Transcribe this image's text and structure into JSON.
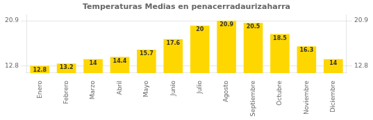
{
  "chart_data": {
    "type": "bar",
    "title": "Temperaturas Medias en penacerradaurizaharra",
    "categories": [
      "Enero",
      "Febrero",
      "Marzo",
      "Abril",
      "Mayo",
      "Junio",
      "Julio",
      "Agosto",
      "Septiembre",
      "Octubre",
      "Noviembre",
      "Diciembre"
    ],
    "values": [
      12.8,
      13.2,
      14.0,
      14.4,
      15.7,
      17.6,
      20.0,
      20.9,
      20.5,
      18.5,
      16.3,
      14.0
    ],
    "color": "#FFD700",
    "ylim": [
      11.5,
      22.0
    ],
    "yticks": [
      12.8,
      20.9
    ],
    "y2lim": [
      11.5,
      22.0
    ],
    "y2ticks": [
      12.8,
      20.9
    ],
    "grid": true,
    "data_labels": true
  }
}
